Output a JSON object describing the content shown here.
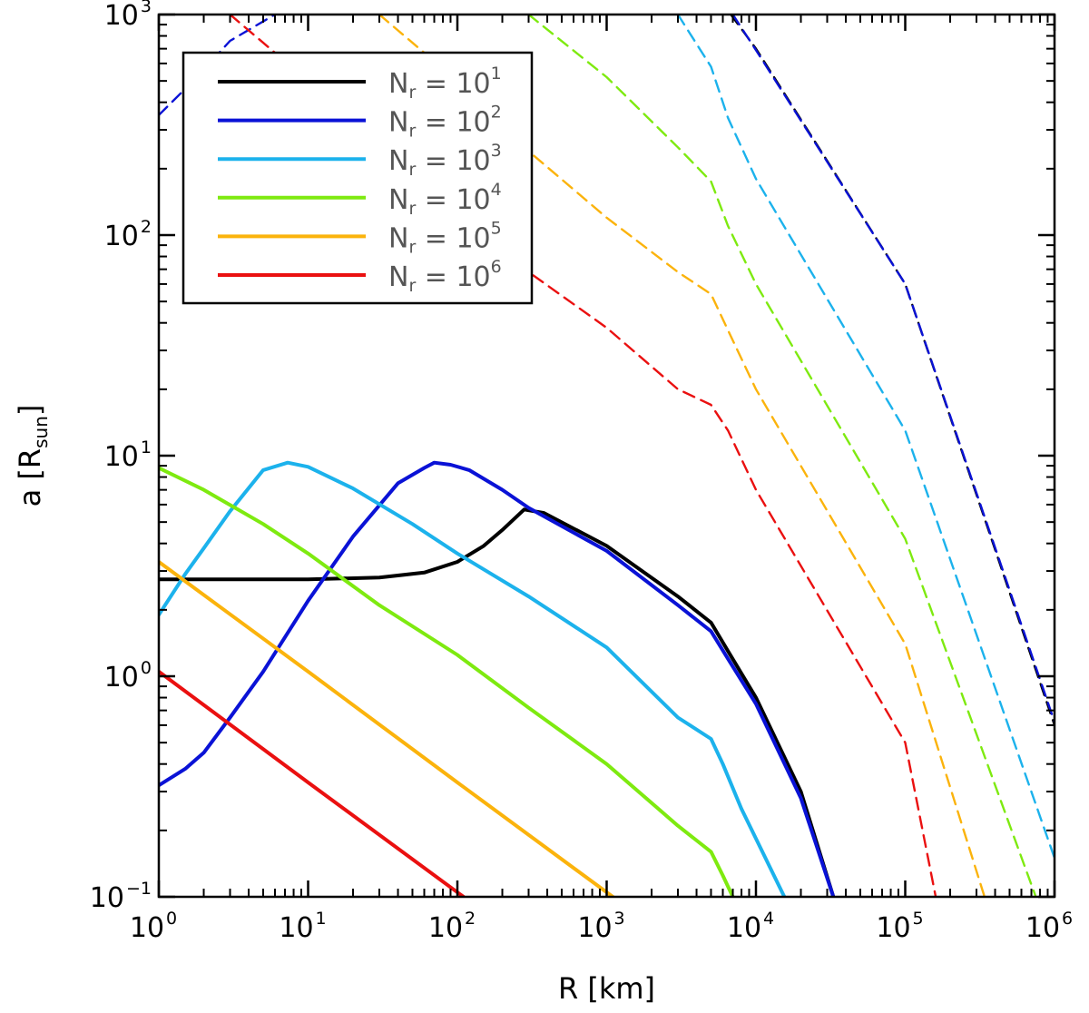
{
  "chart_data": {
    "type": "line",
    "xscale": "log",
    "yscale": "log",
    "xlim": [
      1,
      1000000
    ],
    "ylim": [
      0.1,
      1000
    ],
    "xlabel": "R [km]",
    "ylabel_prefix": "a [R",
    "ylabel_sub": "sun",
    "ylabel_suffix": "]",
    "x_ticks": [
      {
        "base": "10",
        "exp": "0"
      },
      {
        "base": "10",
        "exp": "1"
      },
      {
        "base": "10",
        "exp": "2"
      },
      {
        "base": "10",
        "exp": "3"
      },
      {
        "base": "10",
        "exp": "4"
      },
      {
        "base": "10",
        "exp": "5"
      },
      {
        "base": "10",
        "exp": "6"
      }
    ],
    "y_ticks": [
      {
        "base": "10",
        "exp": "−1"
      },
      {
        "base": "10",
        "exp": "0"
      },
      {
        "base": "10",
        "exp": "1"
      },
      {
        "base": "10",
        "exp": "2"
      },
      {
        "base": "10",
        "exp": "3"
      }
    ],
    "legend": {
      "placement": "top-left",
      "entries": [
        {
          "label": "N",
          "sub": "r",
          "eq": " = 10",
          "exp": "1",
          "color": "#000000"
        },
        {
          "label": "N",
          "sub": "r",
          "eq": " = 10",
          "exp": "2",
          "color": "#0a12d6"
        },
        {
          "label": "N",
          "sub": "r",
          "eq": " = 10",
          "exp": "3",
          "color": "#1cb2ec"
        },
        {
          "label": "N",
          "sub": "r",
          "eq": " = 10",
          "exp": "4",
          "color": "#7eea10"
        },
        {
          "label": "N",
          "sub": "r",
          "eq": " = 10",
          "exp": "5",
          "color": "#fbb30c"
        },
        {
          "label": "N",
          "sub": "r",
          "eq": " = 10",
          "exp": "6",
          "color": "#ea1010"
        }
      ]
    },
    "series": [
      {
        "name": "N_r=10^1 (solid)",
        "color": "#000000",
        "style": "solid",
        "points": [
          [
            1,
            2.75
          ],
          [
            10,
            2.75
          ],
          [
            30,
            2.8
          ],
          [
            60,
            2.95
          ],
          [
            100,
            3.3
          ],
          [
            150,
            3.9
          ],
          [
            200,
            4.6
          ],
          [
            280,
            5.7
          ],
          [
            380,
            5.5
          ],
          [
            1000,
            3.9
          ],
          [
            3000,
            2.3
          ],
          [
            5000,
            1.75
          ],
          [
            6500,
            1.3
          ],
          [
            10000,
            0.8
          ],
          [
            20000,
            0.3
          ],
          [
            33000,
            0.1
          ]
        ]
      },
      {
        "name": "N_r=10^2 (solid)",
        "color": "#0a12d6",
        "style": "solid",
        "points": [
          [
            1,
            0.32
          ],
          [
            1.5,
            0.38
          ],
          [
            2,
            0.45
          ],
          [
            3,
            0.65
          ],
          [
            5,
            1.05
          ],
          [
            10,
            2.2
          ],
          [
            20,
            4.3
          ],
          [
            40,
            7.5
          ],
          [
            60,
            8.8
          ],
          [
            70,
            9.3
          ],
          [
            90,
            9.1
          ],
          [
            120,
            8.6
          ],
          [
            200,
            7.0
          ],
          [
            300,
            5.8
          ],
          [
            1000,
            3.7
          ],
          [
            3000,
            2.1
          ],
          [
            5000,
            1.6
          ],
          [
            6500,
            1.2
          ],
          [
            10000,
            0.75
          ],
          [
            20000,
            0.28
          ],
          [
            33000,
            0.1
          ]
        ]
      },
      {
        "name": "N_r=10^3 (solid)",
        "color": "#1cb2ec",
        "style": "solid",
        "points": [
          [
            1,
            1.9
          ],
          [
            1.5,
            2.9
          ],
          [
            2,
            3.8
          ],
          [
            3,
            5.6
          ],
          [
            5,
            8.6
          ],
          [
            7.3,
            9.3
          ],
          [
            10,
            8.9
          ],
          [
            20,
            7.1
          ],
          [
            50,
            4.9
          ],
          [
            100,
            3.6
          ],
          [
            300,
            2.3
          ],
          [
            1000,
            1.35
          ],
          [
            3000,
            0.65
          ],
          [
            5000,
            0.52
          ],
          [
            6000,
            0.4
          ],
          [
            8000,
            0.25
          ],
          [
            15500,
            0.1
          ]
        ]
      },
      {
        "name": "N_r=10^4 (solid)",
        "color": "#7eea10",
        "style": "solid",
        "points": [
          [
            1,
            8.8
          ],
          [
            2,
            7.0
          ],
          [
            5,
            4.9
          ],
          [
            10,
            3.6
          ],
          [
            30,
            2.1
          ],
          [
            100,
            1.25
          ],
          [
            300,
            0.72
          ],
          [
            1000,
            0.4
          ],
          [
            3000,
            0.21
          ],
          [
            5000,
            0.16
          ],
          [
            6000,
            0.125
          ],
          [
            7000,
            0.1
          ]
        ]
      },
      {
        "name": "N_r=10^5 (solid)",
        "color": "#fbb30c",
        "style": "solid",
        "points": [
          [
            1,
            3.3
          ],
          [
            10,
            1.05
          ],
          [
            100,
            0.33
          ],
          [
            1100,
            0.1
          ]
        ]
      },
      {
        "name": "N_r=10^6 (solid)",
        "color": "#ea1010",
        "style": "solid",
        "points": [
          [
            1,
            1.05
          ],
          [
            10,
            0.33
          ],
          [
            110,
            0.1
          ]
        ]
      },
      {
        "name": "N_r=10^1 (dashed)",
        "color": "#000000",
        "style": "dashed",
        "points": [
          [
            6800,
            1000
          ],
          [
            10000,
            700
          ],
          [
            100000,
            60
          ],
          [
            1000000,
            0.6
          ]
        ]
      },
      {
        "name": "N_r=10^2 (dashed)",
        "color": "#0a12d6",
        "style": "dashed",
        "points": [
          [
            1,
            350
          ],
          [
            1.8,
            520
          ],
          [
            3,
            760
          ],
          [
            6,
            1000
          ]
        ]
      },
      {
        "name": "N_r=10^2 (dashed, right)",
        "color": "#0a12d6",
        "style": "dashed",
        "points": [
          [
            7000,
            1000
          ],
          [
            10000,
            690
          ],
          [
            100000,
            60
          ],
          [
            1000000,
            0.62
          ]
        ]
      },
      {
        "name": "N_r=10^3 (dashed)",
        "color": "#1cb2ec",
        "style": "dashed",
        "points": [
          [
            3000,
            1000
          ],
          [
            5000,
            580
          ],
          [
            6500,
            340
          ],
          [
            10000,
            180
          ],
          [
            100000,
            13
          ],
          [
            1000000,
            0.15
          ]
        ]
      },
      {
        "name": "N_r=10^4 (dashed)",
        "color": "#7eea10",
        "style": "dashed",
        "points": [
          [
            300,
            1000
          ],
          [
            1000,
            520
          ],
          [
            3000,
            250
          ],
          [
            5000,
            175
          ],
          [
            6500,
            110
          ],
          [
            10000,
            60
          ],
          [
            100000,
            4.2
          ],
          [
            750000,
            0.1
          ]
        ]
      },
      {
        "name": "N_r=10^5 (dashed)",
        "color": "#fbb30c",
        "style": "dashed",
        "points": [
          [
            30,
            1000
          ],
          [
            100,
            500
          ],
          [
            300,
            240
          ],
          [
            1000,
            120
          ],
          [
            3000,
            68
          ],
          [
            5000,
            54
          ],
          [
            6500,
            37
          ],
          [
            10000,
            20
          ],
          [
            100000,
            1.4
          ],
          [
            340000,
            0.1
          ]
        ]
      },
      {
        "name": "N_r=10^6 (dashed)",
        "color": "#ea1010",
        "style": "dashed",
        "points": [
          [
            3,
            1000
          ],
          [
            10,
            500
          ],
          [
            30,
            250
          ],
          [
            100,
            120
          ],
          [
            300,
            68
          ],
          [
            1000,
            38
          ],
          [
            3000,
            20
          ],
          [
            5000,
            17
          ],
          [
            6500,
            13
          ],
          [
            10000,
            7
          ],
          [
            100000,
            0.5
          ],
          [
            160000,
            0.1
          ]
        ]
      }
    ]
  }
}
